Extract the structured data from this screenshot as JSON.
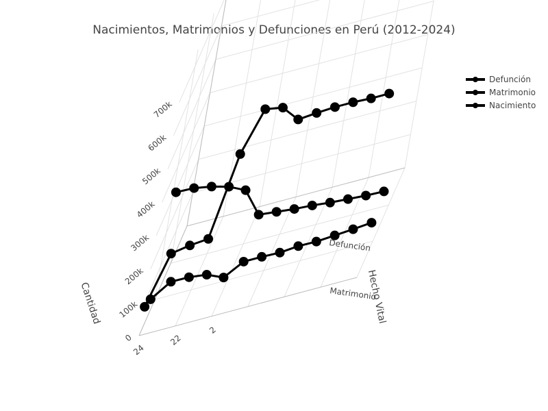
{
  "chart_data": {
    "type": "line",
    "title": "Nacimientos, Matrimonios y Defunciones en Perú (2012-2024)",
    "x_axis": {
      "label": "",
      "tick_labels": [
        "24",
        "22",
        "2"
      ]
    },
    "y_axis": {
      "label": "Hecho Vital",
      "tick_labels": [
        "Defunción",
        "Matrimonio"
      ]
    },
    "z_axis": {
      "label": "Cantidad",
      "tick_labels": [
        "0",
        "100k",
        "200k",
        "300k",
        "400k",
        "500k",
        "600k",
        "700k"
      ],
      "range": [
        0,
        750000
      ]
    },
    "legend": {
      "position": "top-right"
    },
    "grid": true,
    "series": [
      {
        "name": "Defunción",
        "x": [
          2012,
          2013,
          2014,
          2015,
          2016,
          2017,
          2018,
          2019,
          2020,
          2021,
          2022,
          2023,
          2024
        ],
        "values": [
          120000,
          122000,
          126000,
          130000,
          136000,
          140000,
          146000,
          152000,
          240000,
          265000,
          280000,
          290000,
          292000
        ]
      },
      {
        "name": "Matrimonio",
        "x": [
          2012,
          2013,
          2014,
          2015,
          2016,
          2017,
          2018,
          2019,
          2020,
          2021,
          2022,
          2023,
          2024
        ],
        "values": [
          105000,
          100000,
          96000,
          92000,
          93000,
          88000,
          90000,
          90000,
          57000,
          80000,
          87000,
          88000,
          50000
        ]
      },
      {
        "name": "Nacimiento",
        "x": [
          2012,
          2013,
          2014,
          2015,
          2016,
          2017,
          2018,
          2019,
          2020,
          2021,
          2022,
          2023,
          2024
        ],
        "values": [
          545000,
          545000,
          548000,
          548000,
          545000,
          540000,
          590000,
          600000,
          480000,
          240000,
          235000,
          225000,
          80000
        ]
      }
    ]
  }
}
